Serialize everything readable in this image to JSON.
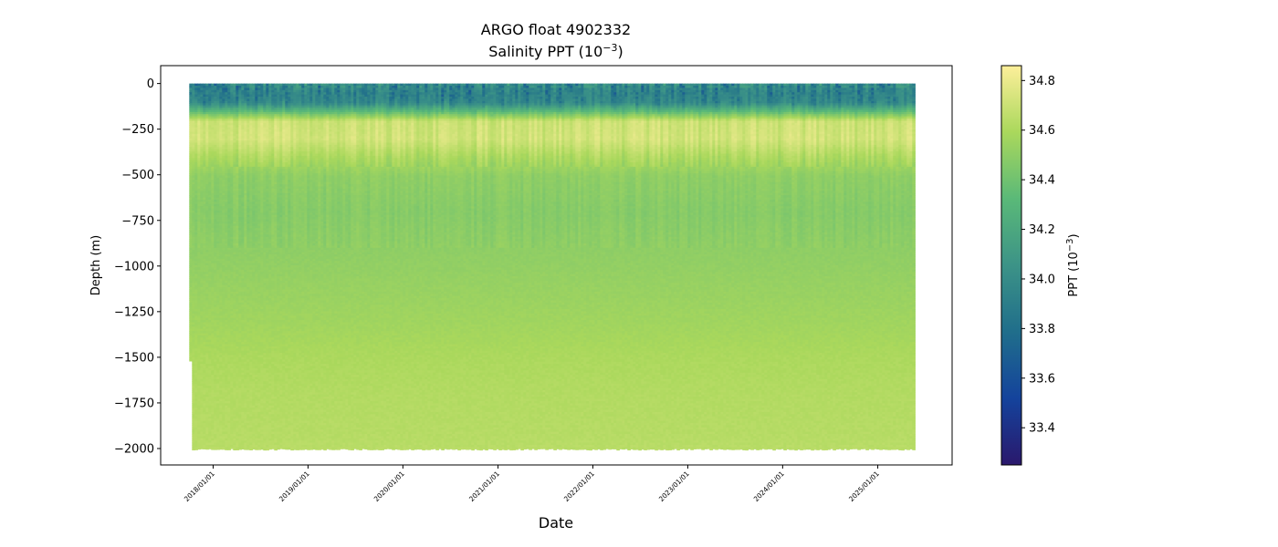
{
  "chart_data": {
    "type": "heatmap",
    "title": "ARGO float 4902332",
    "subtitle_prefix": "Salinity PPT (10",
    "subtitle_exp": "−3",
    "subtitle_suffix": ")",
    "xlabel": "Date",
    "ylabel": "Depth (m)",
    "colorbar_label_prefix": "PPT (10",
    "colorbar_label_exp": "−3",
    "colorbar_label_suffix": ")",
    "colormap": "haline",
    "colormap_stops": [
      "#2a186c",
      "#14439c",
      "#206e8b",
      "#3c9387",
      "#5ab978",
      "#aad85c",
      "#fdef9a"
    ],
    "color_range": [
      33.25,
      34.86
    ],
    "colorbar_ticks": [
      "33.4",
      "33.6",
      "33.8",
      "34.0",
      "34.2",
      "34.4",
      "34.6",
      "34.8"
    ],
    "xlim": [
      "2017-06-13",
      "2025-10-14"
    ],
    "x_ticks": [
      "2018/01/01",
      "2019/01/01",
      "2020/01/01",
      "2021/01/01",
      "2022/01/01",
      "2023/01/01",
      "2024/01/01",
      "2025/01/01"
    ],
    "data_start": "2017-10-01",
    "data_end": "2025-05-15",
    "ylim": [
      -2090,
      98
    ],
    "y_ticks": [
      "0",
      "−250",
      "−500",
      "−750",
      "−1000",
      "−1250",
      "−1500",
      "−1750",
      "−2000"
    ],
    "grid": false,
    "profile_depths": [
      0,
      -50,
      -100,
      -150,
      -200,
      -300,
      -400,
      -500,
      -700,
      -900,
      -1100,
      -1300,
      -1500,
      -1700,
      -1900,
      -2000
    ],
    "mean_salinity_profile": [
      34.35,
      34.15,
      34.05,
      34.35,
      34.7,
      34.72,
      34.6,
      34.5,
      34.47,
      34.5,
      34.53,
      34.56,
      34.6,
      34.62,
      34.63,
      34.64
    ],
    "max_depth_before_2017_10": -1520,
    "max_depth": -2000
  }
}
